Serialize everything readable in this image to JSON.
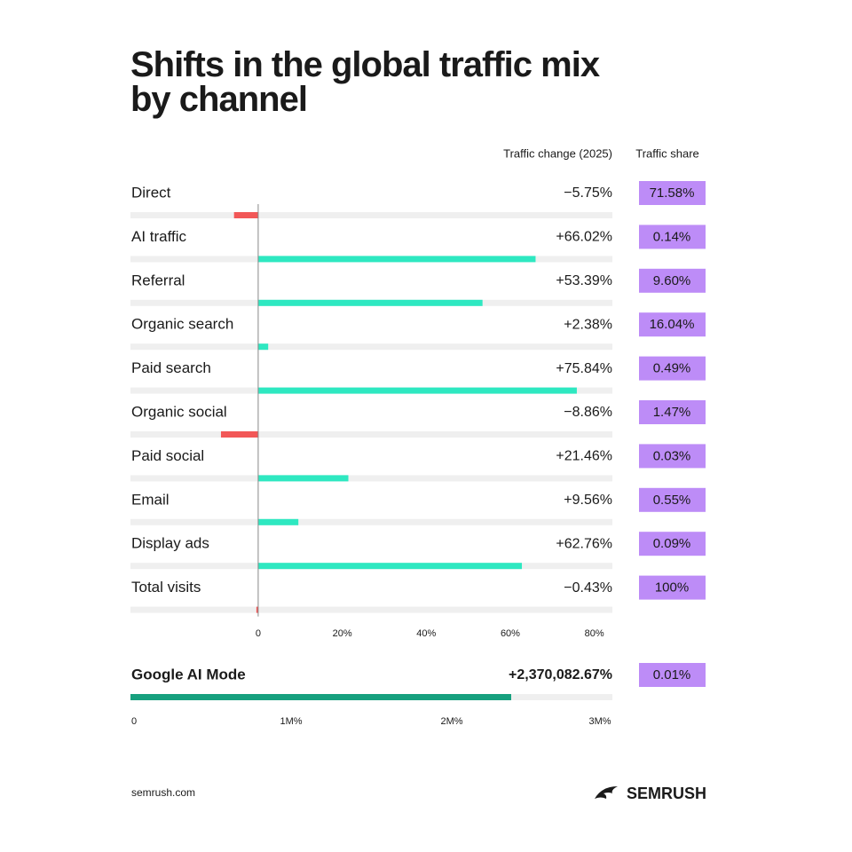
{
  "chart_data": [
    {
      "type": "hbar",
      "title": "Shifts in the global traffic mix by channel",
      "value_header": "Traffic change (2025)",
      "share_header": "Traffic share",
      "categories": [
        "Direct",
        "AI traffic",
        "Referral",
        "Organic search",
        "Paid search",
        "Organic social",
        "Paid social",
        "Email",
        "Display ads",
        "Total visits"
      ],
      "values": [
        -5.75,
        66.02,
        53.39,
        2.38,
        75.84,
        -8.86,
        21.46,
        9.56,
        62.76,
        -0.43
      ],
      "value_labels": [
        "−5.75%",
        "+66.02%",
        "+53.39%",
        "+2.38%",
        "+75.84%",
        "−8.86%",
        "+21.46%",
        "+9.56%",
        "+62.76%",
        "−0.43%"
      ],
      "shares": [
        71.58,
        0.14,
        9.6,
        16.04,
        0.49,
        1.47,
        0.03,
        0.55,
        0.09,
        100
      ],
      "share_labels": [
        "71.58%",
        "0.14%",
        "9.60%",
        "16.04%",
        "0.49%",
        "1.47%",
        "0.03%",
        "0.55%",
        "0.09%",
        "100%"
      ],
      "xlim": [
        -30.4,
        84.3
      ],
      "xticks": [
        0,
        {
          "value": 20,
          "label": "20%"
        },
        {
          "value": 40,
          "label": "40%"
        },
        {
          "value": 60,
          "label": "60%"
        },
        {
          "value": 80,
          "label": "80%"
        }
      ],
      "positive_color": "#2ee8c1",
      "negative_color": "#f25757",
      "share_color": "#bd8cf7"
    },
    {
      "type": "hbar",
      "categories": [
        "Google AI Mode"
      ],
      "values": [
        2370082.67
      ],
      "value_labels": [
        "+2,370,082.67%"
      ],
      "shares": [
        0.01
      ],
      "share_labels": [
        "0.01%"
      ],
      "xlim": [
        0,
        3000000
      ],
      "xticks": [
        0,
        {
          "value": 1000000,
          "label": "1M%"
        },
        {
          "value": 2000000,
          "label": "2M%"
        },
        {
          "value": 3000000,
          "label": "3M%"
        }
      ],
      "color": "#17a07e",
      "share_color": "#bd8cf7"
    }
  ],
  "footer": {
    "source": "semrush.com",
    "brand": "SEMRUSH"
  }
}
